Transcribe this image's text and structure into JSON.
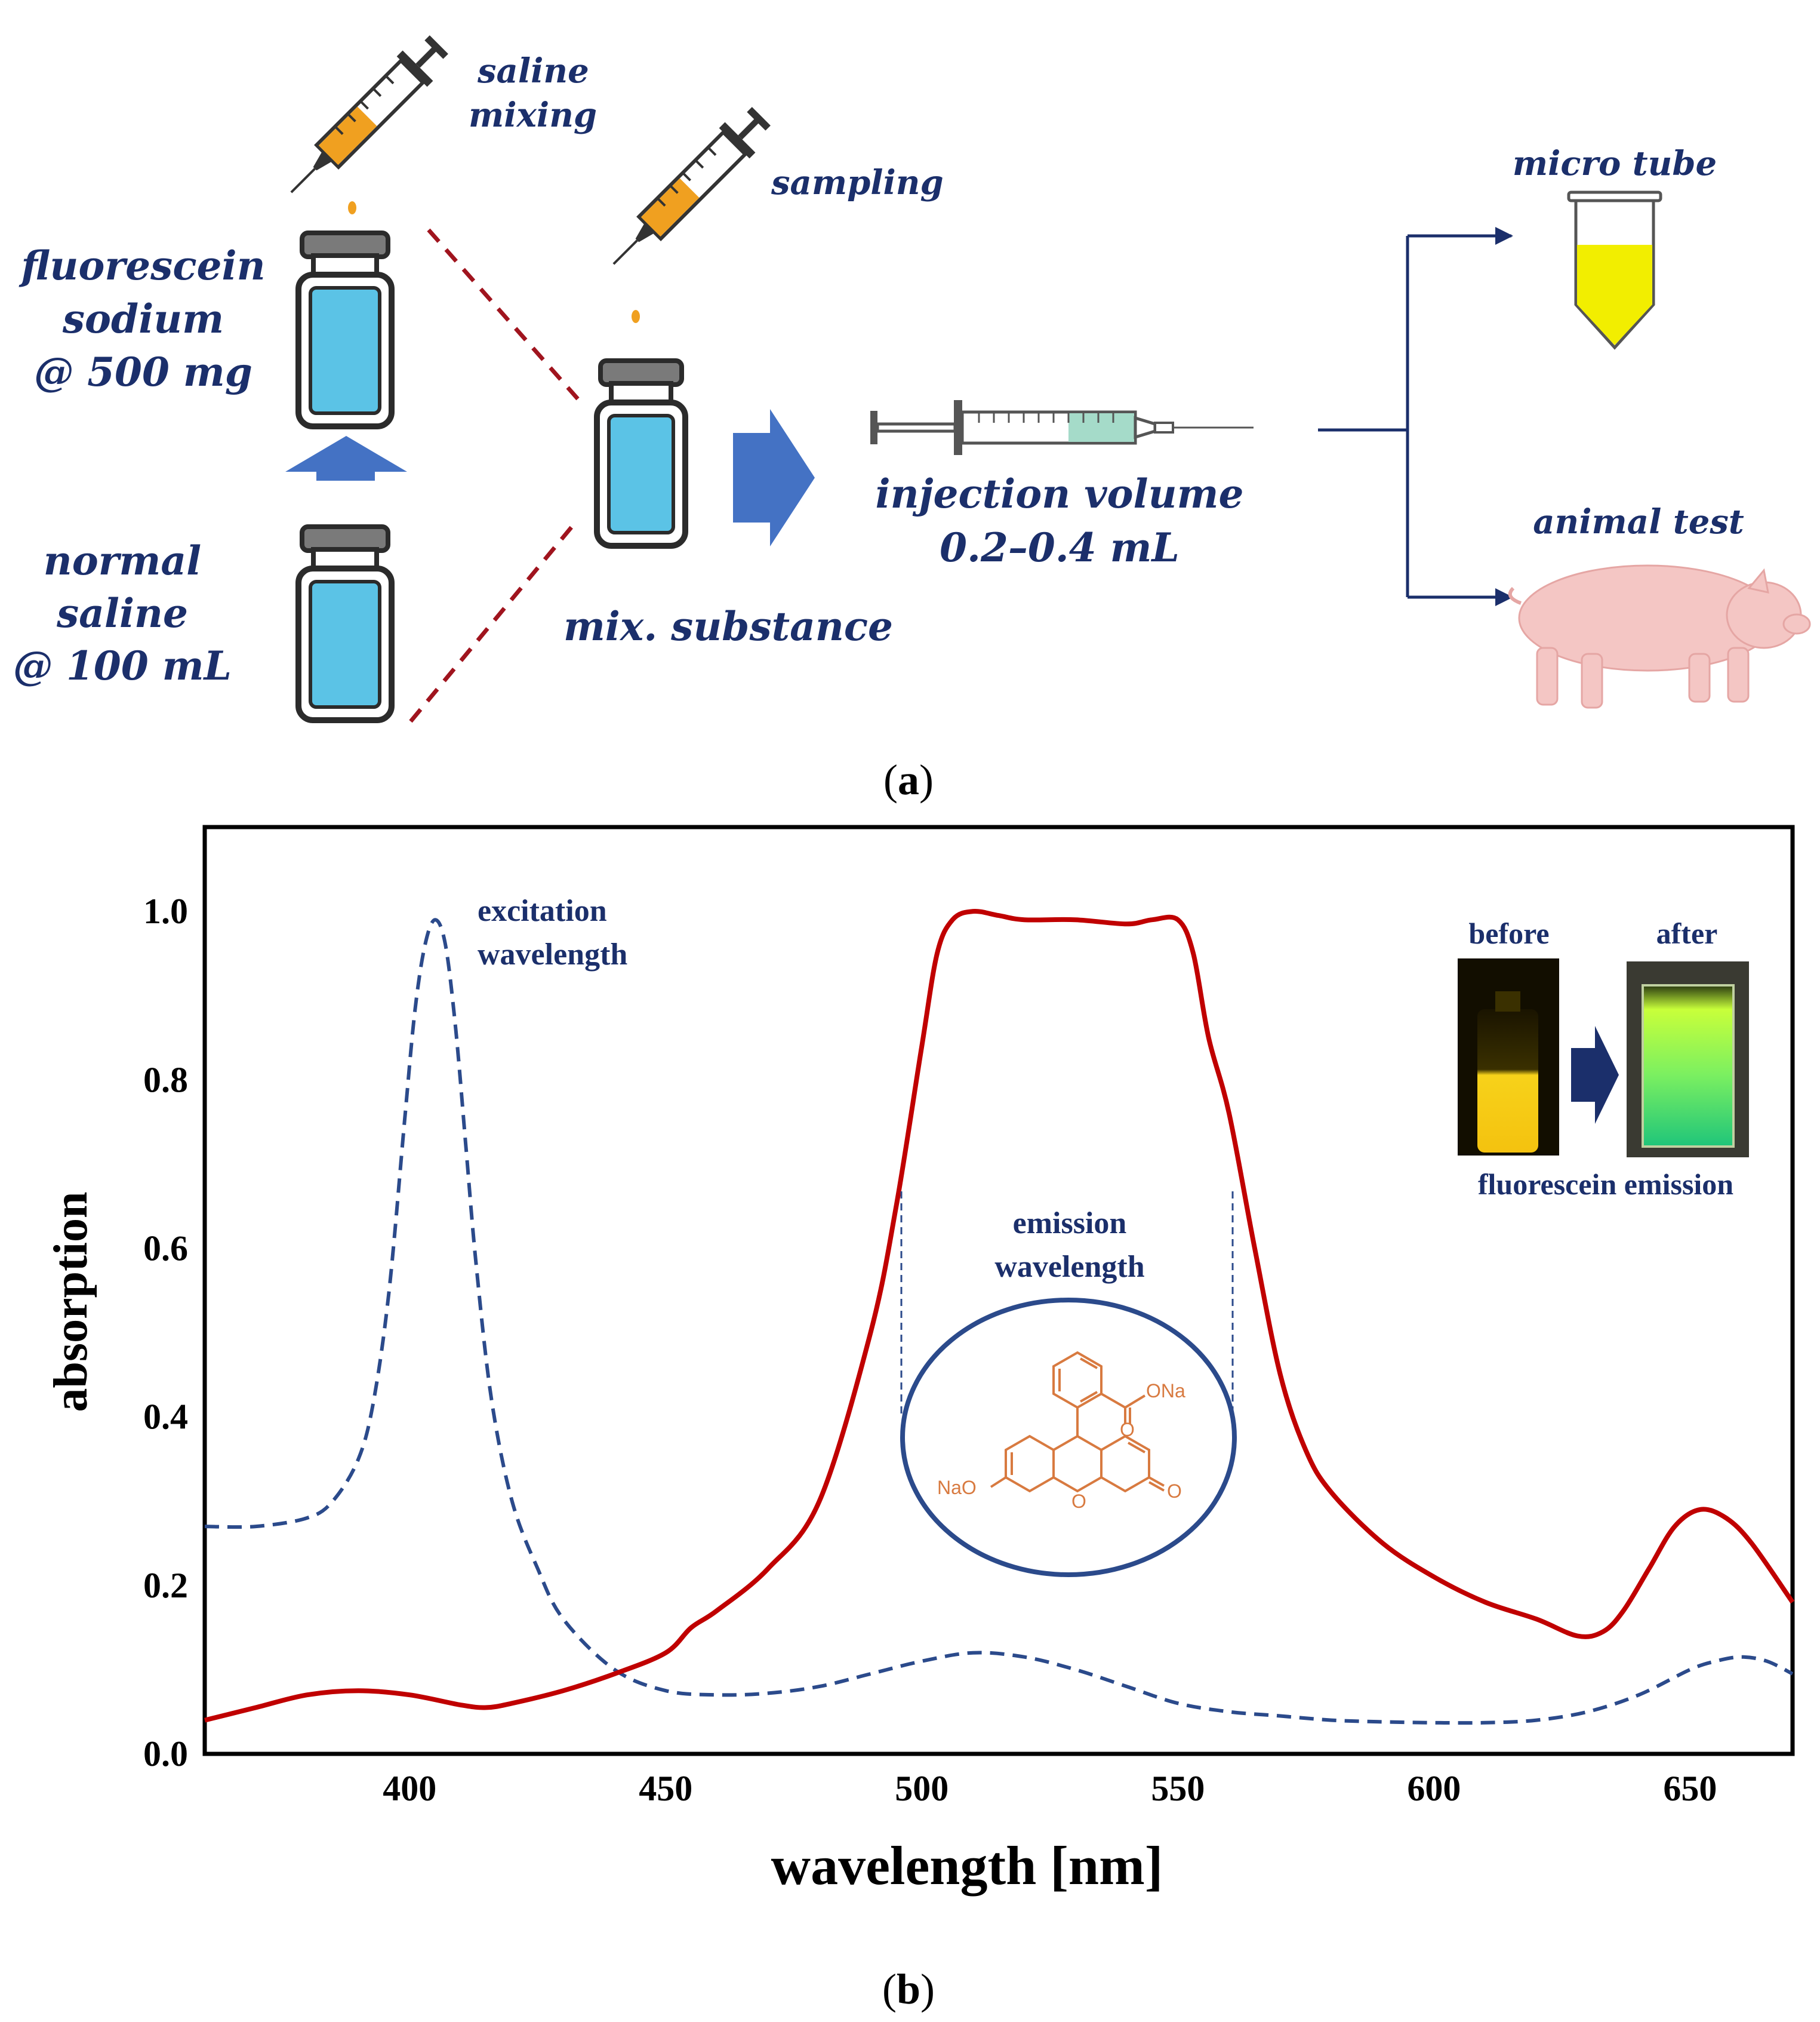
{
  "panel_a": {
    "label_fluorescein": [
      "fluorescein",
      "sodium",
      "@ 500 mg"
    ],
    "label_saline": [
      "normal",
      "saline",
      "@ 100 mL"
    ],
    "label_saline_mixing": [
      "saline",
      "mixing"
    ],
    "label_sampling": "sampling",
    "label_mix": "mix. substance",
    "label_injection": [
      "injection volume",
      "0.2–0.4 mL"
    ],
    "label_micro_tube": "micro tube",
    "label_animal_test": "animal test",
    "caption": "(a)",
    "caption_letter": "a",
    "colors": {
      "navy": "#1b2f6b",
      "vial_liquid": "#5bc3e6",
      "arrow_blue": "#4472c4",
      "dash_red": "#a0141e",
      "syringe_fill": "#f0a020",
      "tube_yellow": "#f2ee00",
      "pig": "#f4c6c4"
    }
  },
  "chart_data": {
    "type": "line",
    "xlabel": "wavelength [nm]",
    "ylabel": "absorption",
    "xlim": [
      360,
      670
    ],
    "ylim": [
      0.0,
      1.1
    ],
    "x_ticks": [
      400,
      450,
      500,
      550,
      600,
      650
    ],
    "y_ticks": [
      "0.0",
      "0.2",
      "0.4",
      "0.6",
      "0.8",
      "1.0"
    ],
    "y_tick_values": [
      0.0,
      0.2,
      0.4,
      0.6,
      0.8,
      1.0
    ],
    "series": [
      {
        "name": "excitation",
        "style": "dashed",
        "color": "#2b4a8b",
        "x": [
          360,
          370,
          380,
          385,
          390,
          393,
          396,
          399,
          401,
          403,
          405,
          407,
          409,
          411,
          413,
          416,
          420,
          425,
          430,
          440,
          450,
          460,
          470,
          480,
          490,
          500,
          510,
          520,
          530,
          540,
          550,
          560,
          570,
          580,
          590,
          600,
          610,
          620,
          630,
          640,
          650,
          655,
          660,
          665,
          670
        ],
        "y": [
          0.27,
          0.27,
          0.28,
          0.3,
          0.35,
          0.42,
          0.55,
          0.75,
          0.88,
          0.96,
          0.99,
          0.96,
          0.86,
          0.72,
          0.58,
          0.42,
          0.3,
          0.22,
          0.16,
          0.1,
          0.075,
          0.07,
          0.072,
          0.08,
          0.095,
          0.11,
          0.12,
          0.115,
          0.1,
          0.08,
          0.06,
          0.05,
          0.045,
          0.04,
          0.038,
          0.037,
          0.037,
          0.04,
          0.05,
          0.07,
          0.1,
          0.11,
          0.115,
          0.11,
          0.095
        ]
      },
      {
        "name": "emission",
        "style": "solid",
        "color": "#c00000",
        "x": [
          360,
          370,
          380,
          390,
          400,
          410,
          415,
          420,
          430,
          440,
          450,
          455,
          460,
          470,
          480,
          490,
          495,
          500,
          503,
          506,
          510,
          515,
          520,
          530,
          540,
          545,
          550,
          553,
          556,
          560,
          565,
          570,
          575,
          580,
          590,
          600,
          610,
          620,
          628,
          633,
          637,
          642,
          647,
          652,
          657,
          662,
          670
        ],
        "y": [
          0.04,
          0.055,
          0.07,
          0.075,
          0.07,
          0.058,
          0.055,
          0.06,
          0.075,
          0.095,
          0.12,
          0.15,
          0.17,
          0.22,
          0.3,
          0.5,
          0.65,
          0.84,
          0.95,
          0.99,
          1.0,
          0.995,
          0.99,
          0.99,
          0.985,
          0.99,
          0.99,
          0.95,
          0.85,
          0.76,
          0.6,
          0.45,
          0.36,
          0.31,
          0.25,
          0.21,
          0.18,
          0.16,
          0.14,
          0.145,
          0.17,
          0.22,
          0.27,
          0.29,
          0.28,
          0.25,
          0.18
        ]
      }
    ],
    "annotations": {
      "excitation": [
        "excitation",
        "wavelength"
      ],
      "emission": [
        "emission",
        "wavelength"
      ],
      "before": "before",
      "after": "after",
      "inset_caption": "fluorescein emission",
      "molecule_ona": "ONa",
      "molecule_nao": "NaO",
      "molecule_o1": "O",
      "molecule_o2": "O",
      "molecule_o3": "O"
    },
    "caption": "(b)",
    "caption_letter": "b"
  }
}
